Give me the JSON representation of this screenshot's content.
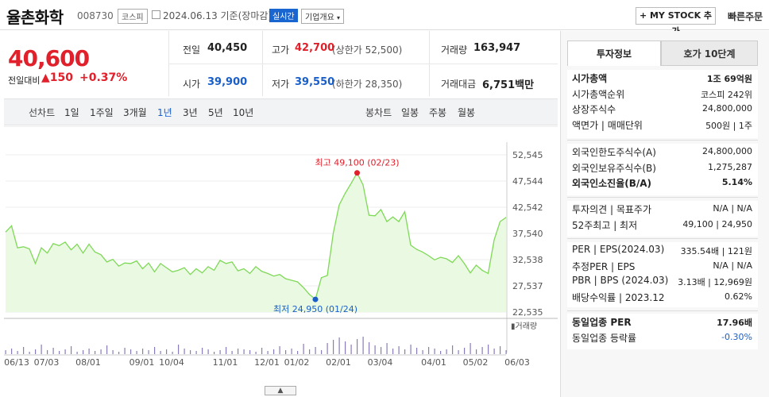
{
  "header": {
    "stock_name": "율촌화학",
    "stock_code": "008730",
    "market": "코스피",
    "date_text": "2024.06.13 기준(장마감)",
    "realtime_label": "실시간",
    "corp_info_label": "기업개요",
    "mystock_label": "+ MY STOCK 추가",
    "quick_order_label": "빠른주문"
  },
  "price": {
    "current": "40,600",
    "change_label": "전일대비",
    "change_value": "▲150",
    "change_rate": "+0.37%"
  },
  "quote": {
    "prev_label": "전일",
    "prev_value": "40,450",
    "high_label": "고가",
    "high_value": "42,700",
    "upper_limit": "(상한가 52,500)",
    "volume_label": "거래량",
    "volume_value": "163,947",
    "open_label": "시가",
    "open_value": "39,900",
    "low_label": "저가",
    "low_value": "39,550",
    "lower_limit": "(하한가 28,350)",
    "amount_label": "거래대금",
    "amount_value": "6,751백만"
  },
  "period_bar": {
    "line_label": "선차트",
    "line_periods": [
      "1일",
      "1주일",
      "3개월",
      "1년",
      "3년",
      "5년",
      "10년"
    ],
    "active_period": "1년",
    "candle_label": "봉차트",
    "candle_periods": [
      "일봉",
      "주봉",
      "월봉"
    ]
  },
  "chart_data": {
    "type": "area",
    "x": [
      "06/13",
      "06/17",
      "06/20",
      "06/25",
      "06/28",
      "07/03",
      "07/08",
      "07/11",
      "07/16",
      "07/19",
      "07/24",
      "07/29",
      "08/01",
      "08/06",
      "08/09",
      "08/14",
      "08/19",
      "08/22",
      "08/27",
      "08/30",
      "09/04",
      "09/09",
      "09/13",
      "09/20",
      "09/25",
      "10/01",
      "10/04",
      "10/10",
      "10/13",
      "10/18",
      "10/23",
      "10/26",
      "10/31",
      "11/03",
      "11/08",
      "11/13",
      "11/16",
      "11/21",
      "11/24",
      "11/29",
      "12/04",
      "12/07",
      "12/12",
      "12/15",
      "12/20",
      "12/26",
      "12/29",
      "01/02",
      "01/05",
      "01/10",
      "01/15",
      "01/18",
      "01/24",
      "01/29",
      "02/01",
      "02/06",
      "02/13",
      "02/16",
      "02/21",
      "02/23",
      "02/28",
      "03/04",
      "03/07",
      "03/12",
      "03/15",
      "03/20",
      "03/25",
      "03/28",
      "04/02",
      "04/05",
      "04/11",
      "04/16",
      "04/19",
      "04/24",
      "04/29",
      "05/03",
      "05/08",
      "05/13",
      "05/17",
      "05/22",
      "05/27",
      "05/30",
      "06/04",
      "06/07",
      "06/13"
    ],
    "values": [
      37800,
      39000,
      34800,
      35000,
      34600,
      31800,
      34800,
      33800,
      35600,
      35200,
      35900,
      34400,
      35500,
      33800,
      35500,
      34000,
      33500,
      32100,
      32600,
      31300,
      31900,
      31800,
      32300,
      30800,
      31900,
      30200,
      31800,
      31000,
      30200,
      30500,
      31000,
      29700,
      30800,
      30000,
      31200,
      30500,
      32400,
      31800,
      32100,
      30400,
      30800,
      29900,
      31200,
      30300,
      29900,
      29400,
      29700,
      28900,
      28600,
      28300,
      27200,
      25900,
      24950,
      29100,
      29500,
      37600,
      43000,
      45200,
      47100,
      49100,
      46800,
      41000,
      40900,
      42100,
      39800,
      40700,
      39800,
      41700,
      35300,
      34500,
      34000,
      33300,
      32500,
      33000,
      32700,
      32000,
      33300,
      31800,
      30000,
      31500,
      30500,
      29900,
      36300,
      39800,
      40600
    ],
    "x_ticks": [
      "06/13",
      "07/03",
      "08/01",
      "09/01",
      "10/04",
      "11/01",
      "12/01",
      "01/02",
      "02/01",
      "03/04",
      "04/01",
      "05/02",
      "06/03"
    ],
    "y_ticks": [
      "52,545",
      "47,544",
      "42,542",
      "37,540",
      "32,538",
      "27,537",
      "22,535"
    ],
    "ylim": [
      22535,
      52545
    ],
    "high_annotation": "최고 49,100 (02/23)",
    "low_annotation": "최저 24,950 (01/24)",
    "volume_label": "거래량",
    "colors": {
      "line": "#7ed957",
      "fill": "#eaf9e2",
      "high": "#e0202a",
      "low": "#1a5fc9",
      "volume": "#8a7cb8"
    }
  },
  "right_panel": {
    "tabs": [
      "투자정보",
      "호가 10단계"
    ],
    "section1": [
      {
        "label": "시가총액",
        "value": "1조 69억원",
        "bold": true
      },
      {
        "label": "시가총액순위",
        "value": "코스피 242위"
      },
      {
        "label": "상장주식수",
        "value": "24,800,000"
      },
      {
        "label": "액면가 | 매매단위",
        "value": "500원 | 1주"
      }
    ],
    "section2": [
      {
        "label": "외국인한도주식수(A)",
        "value": "24,800,000"
      },
      {
        "label": "외국인보유주식수(B)",
        "value": "1,275,287"
      },
      {
        "label": "외국인소진율(B/A)",
        "value": "5.14%",
        "bold": true
      }
    ],
    "section3": [
      {
        "label": "투자의견 | 목표주가",
        "value": "N/A | N/A"
      },
      {
        "label": "52주최고 | 최저",
        "value": "49,100 | 24,950"
      }
    ],
    "section4": [
      {
        "label": "PER | EPS(2024.03)",
        "value": "335.54배 | 121원"
      },
      {
        "label": "추정PER | EPS",
        "value": "N/A | N/A"
      },
      {
        "label": "PBR | BPS (2024.03)",
        "value": "3.13배 | 12,969원"
      },
      {
        "label": "배당수익률 | 2023.12",
        "value": "0.62%"
      }
    ],
    "section5": [
      {
        "label": "동일업종 PER",
        "value": "17.96배",
        "bold": true
      },
      {
        "label": "동일업종 등락률",
        "value": "-0.30%",
        "blue": true
      }
    ]
  }
}
